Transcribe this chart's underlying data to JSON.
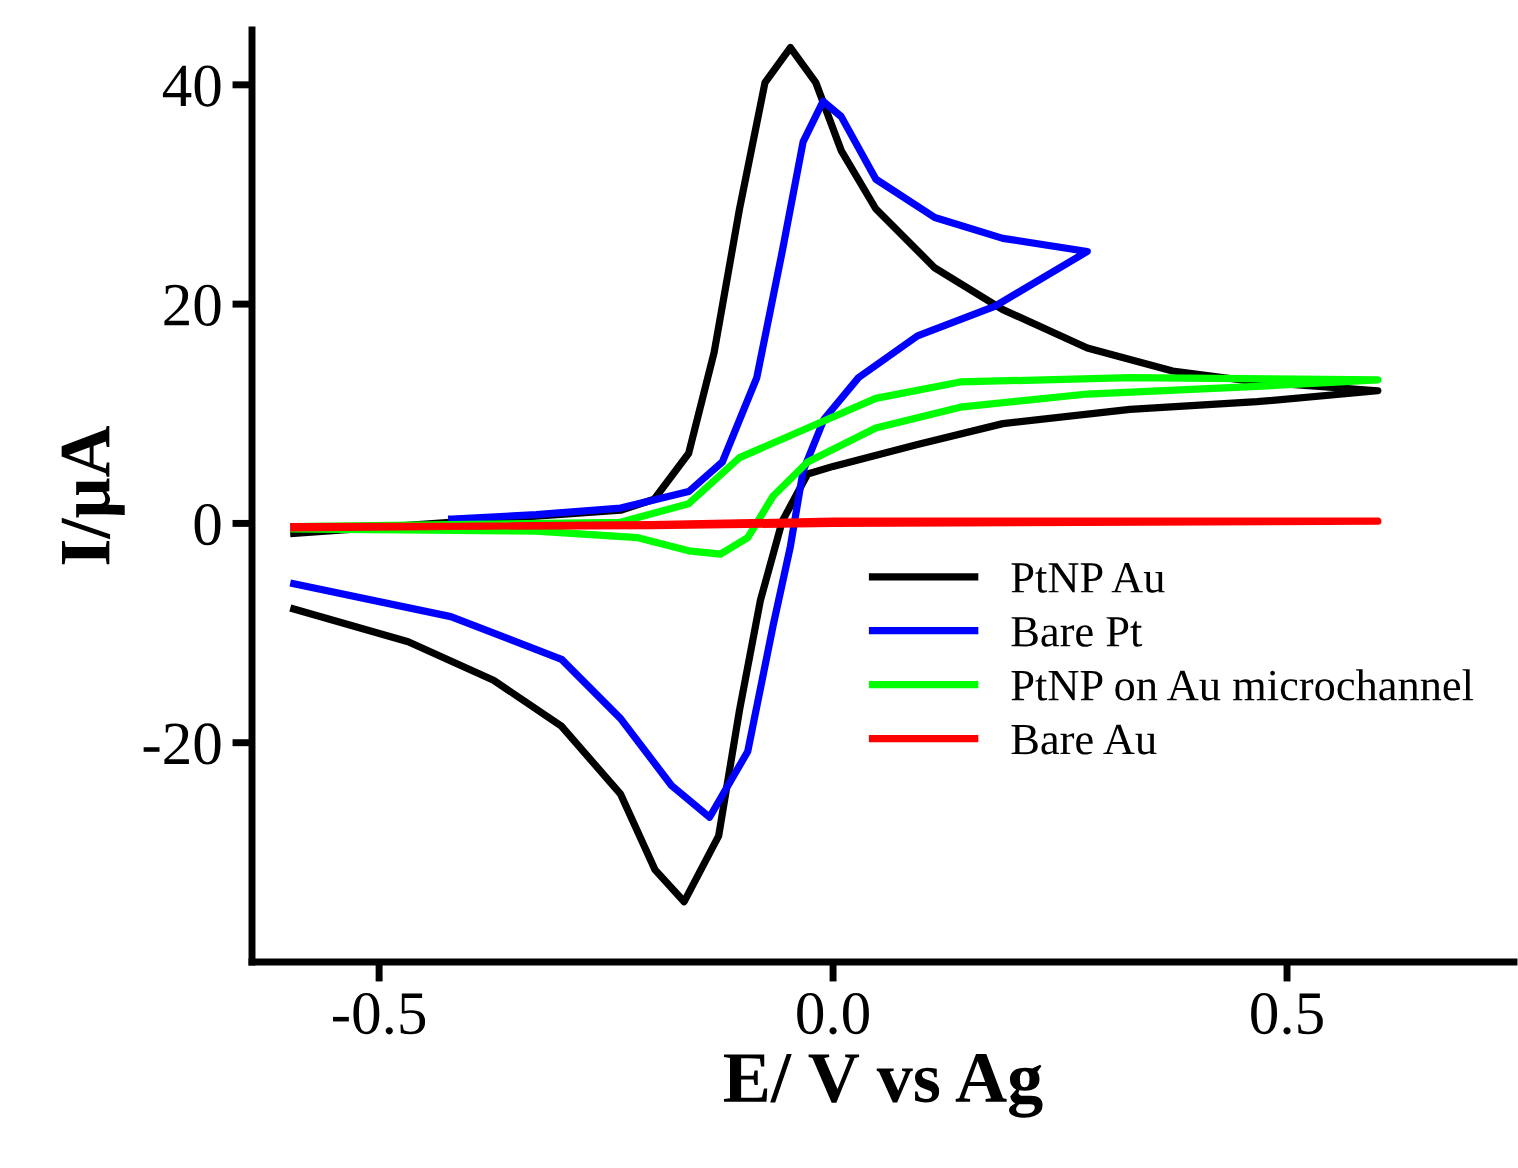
{
  "chart_data": {
    "type": "line",
    "xlabel": "E/ V vs Ag",
    "ylabel": "I/μA",
    "xlim": [
      -0.64,
      0.75
    ],
    "ylim": [
      -40,
      45
    ],
    "xticks": [
      {
        "value": -0.5,
        "label": "-0.5"
      },
      {
        "value": 0.0,
        "label": "0.0"
      },
      0.5
    ],
    "yticks": [
      {
        "value": -20,
        "label": "-20"
      },
      0,
      20,
      40
    ],
    "grid": false,
    "legend": "lower right",
    "marker": "none",
    "line_style": "solid",
    "series": [
      {
        "name": "PtNP Au",
        "color": "#000000",
        "x": [
          -0.594,
          -0.234,
          -0.197,
          -0.159,
          -0.131,
          -0.103,
          -0.075,
          -0.047,
          -0.019,
          0.009,
          0.047,
          0.112,
          0.187,
          0.28,
          0.374,
          0.467,
          0.6,
          0.467,
          0.327,
          0.187,
          0.093,
          0.0,
          -0.028,
          -0.056,
          -0.08,
          -0.103,
          -0.126,
          -0.164,
          -0.196,
          -0.234,
          -0.299,
          -0.374,
          -0.468,
          -0.594
        ],
        "values": [
          -0.9,
          1.2,
          2.2,
          6.4,
          15.6,
          28.7,
          40.2,
          43.4,
          40.2,
          34.0,
          28.7,
          23.3,
          19.5,
          16.0,
          13.9,
          12.9,
          12.1,
          11.1,
          10.4,
          9.1,
          7.2,
          5.2,
          4.5,
          0.2,
          -7.0,
          -17.0,
          -28.5,
          -34.5,
          -31.6,
          -24.7,
          -18.5,
          -14.3,
          -10.8,
          -7.8
        ]
      },
      {
        "name": "Bare Pt",
        "color": "#0000ff",
        "x": [
          -0.42,
          -0.327,
          -0.234,
          -0.159,
          -0.122,
          -0.084,
          -0.056,
          -0.033,
          -0.011,
          0.009,
          0.047,
          0.112,
          0.187,
          0.28,
          0.178,
          0.093,
          0.028,
          -0.01,
          -0.033,
          -0.047,
          -0.066,
          -0.094,
          -0.136,
          -0.178,
          -0.234,
          -0.299,
          -0.421,
          -0.594
        ],
        "values": [
          0.4,
          0.8,
          1.4,
          2.9,
          5.6,
          13.3,
          24.8,
          34.8,
          38.5,
          37.1,
          31.4,
          27.9,
          26.0,
          24.8,
          19.8,
          17.1,
          13.3,
          9.5,
          4.8,
          -2.1,
          -9.3,
          -20.8,
          -26.8,
          -23.9,
          -17.8,
          -12.4,
          -8.5,
          -5.5
        ]
      },
      {
        "name": "PtNP on Au microchannel",
        "color": "#00ff00",
        "x": [
          -0.594,
          -0.234,
          -0.159,
          -0.103,
          -0.028,
          0.047,
          0.14,
          0.327,
          0.6,
          0.467,
          0.28,
          0.14,
          0.047,
          -0.028,
          -0.066,
          -0.094,
          -0.124,
          -0.159,
          -0.215,
          -0.327,
          -0.594
        ],
        "values": [
          -0.3,
          0.1,
          1.8,
          6.0,
          8.7,
          11.4,
          12.9,
          13.3,
          13.1,
          12.5,
          11.8,
          10.6,
          8.7,
          5.6,
          2.5,
          -1.3,
          -2.8,
          -2.5,
          -1.3,
          -0.7,
          -0.5
        ]
      },
      {
        "name": "Bare Au",
        "color": "#ff0000",
        "x": [
          -0.594,
          -0.2,
          0.0,
          0.6,
          0.0,
          -0.2,
          -0.594
        ],
        "values": [
          -0.3,
          -0.2,
          0.0,
          0.2,
          0.2,
          -0.1,
          -0.4
        ]
      }
    ]
  }
}
